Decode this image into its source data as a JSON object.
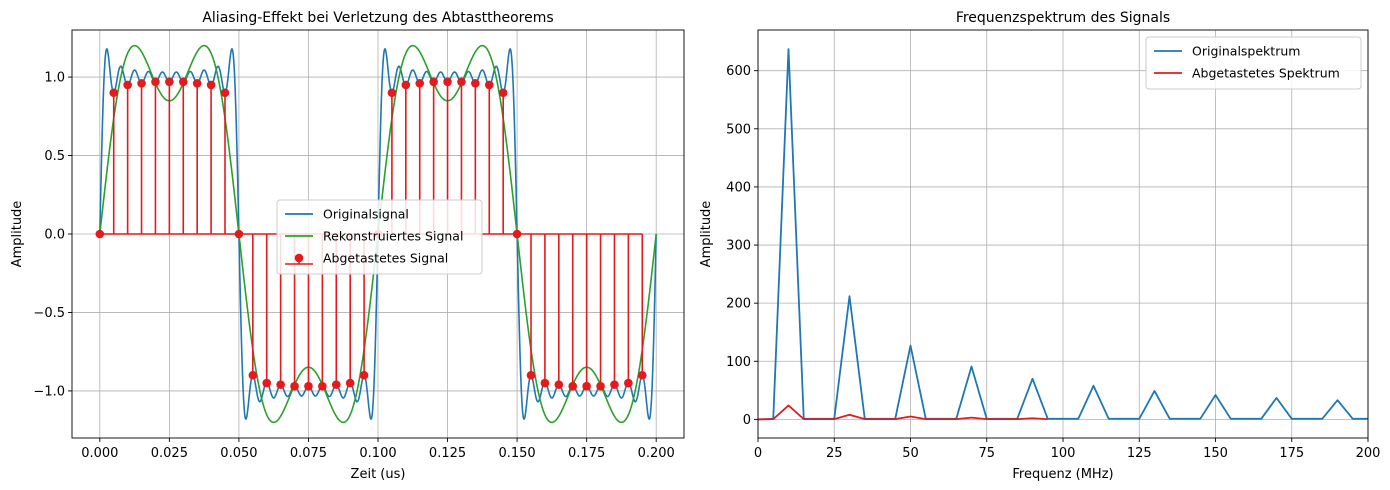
{
  "chart_data": [
    {
      "type": "line",
      "title": "Aliasing-Effekt bei Verletzung des Abtasttheorems",
      "xlabel": "Zeit (us)",
      "ylabel": "Amplitude",
      "xlim": [
        -0.01,
        0.21
      ],
      "ylim": [
        -1.3,
        1.3
      ],
      "xticks": [
        0.0,
        0.025,
        0.05,
        0.075,
        0.1,
        0.125,
        0.15,
        0.175,
        0.2
      ],
      "xtick_labels": [
        "0.000",
        "0.025",
        "0.050",
        "0.075",
        "0.100",
        "0.125",
        "0.150",
        "0.175",
        "0.200"
      ],
      "yticks": [
        -1.0,
        -0.5,
        0.0,
        0.5,
        1.0
      ],
      "ytick_labels": [
        "−1.0",
        "−0.5",
        "0.0",
        "0.5",
        "1.0"
      ],
      "grid": true,
      "legend_position": "center",
      "series": [
        {
          "name": "Originalsignal",
          "kind": "line",
          "color": "#1f77b4",
          "signal": {
            "fundamental_MHz": 10,
            "odd_harmonics_up_to": 19,
            "duration_us": 0.2
          }
        },
        {
          "name": "Rekonstruiertes Signal",
          "kind": "line",
          "color": "#2ca02c",
          "signal": {
            "fundamental_MHz": 10,
            "odd_harmonics_up_to": 3,
            "duration_us": 0.2
          }
        },
        {
          "name": "Abgetastetes Signal",
          "kind": "stem",
          "color": "#e41a1c",
          "x": [
            0.0,
            0.005,
            0.01,
            0.015,
            0.02,
            0.025,
            0.03,
            0.035,
            0.04,
            0.045,
            0.05,
            0.055,
            0.06,
            0.065,
            0.07,
            0.075,
            0.08,
            0.085,
            0.09,
            0.095,
            0.1,
            0.105,
            0.11,
            0.115,
            0.12,
            0.125,
            0.13,
            0.135,
            0.14,
            0.145,
            0.15,
            0.155,
            0.16,
            0.165,
            0.17,
            0.175,
            0.18,
            0.185,
            0.19,
            0.195
          ],
          "y": [
            0.0,
            0.9,
            0.95,
            0.96,
            0.97,
            0.97,
            0.97,
            0.96,
            0.95,
            0.9,
            0.0,
            -0.9,
            -0.95,
            -0.96,
            -0.97,
            -0.97,
            -0.97,
            -0.96,
            -0.95,
            -0.9,
            0.0,
            0.9,
            0.95,
            0.96,
            0.97,
            0.97,
            0.97,
            0.96,
            0.95,
            0.9,
            0.0,
            -0.9,
            -0.95,
            -0.96,
            -0.97,
            -0.97,
            -0.97,
            -0.96,
            -0.95,
            -0.9
          ]
        }
      ]
    },
    {
      "type": "line",
      "title": "Frequenzspektrum des Signals",
      "xlabel": "Frequenz (MHz)",
      "ylabel": "Amplitude",
      "xlim": [
        0,
        200
      ],
      "ylim": [
        -32,
        670
      ],
      "xticks": [
        0,
        25,
        50,
        75,
        100,
        125,
        150,
        175,
        200
      ],
      "yticks": [
        0,
        100,
        200,
        300,
        400,
        500,
        600
      ],
      "grid": true,
      "legend_position": "upper right",
      "series": [
        {
          "name": "Originalspektrum",
          "color": "#1f77b4",
          "x": [
            0,
            5,
            10,
            15,
            20,
            25,
            30,
            35,
            40,
            45,
            50,
            55,
            60,
            65,
            70,
            75,
            80,
            85,
            90,
            95,
            100,
            105,
            110,
            115,
            120,
            125,
            130,
            135,
            140,
            145,
            150,
            155,
            160,
            165,
            170,
            175,
            180,
            185,
            190,
            195,
            200
          ],
          "y": [
            0,
            1,
            637,
            1,
            1,
            1,
            212,
            1,
            1,
            1,
            127,
            1,
            1,
            1,
            91,
            1,
            1,
            1,
            70,
            1,
            1,
            1,
            58,
            1,
            1,
            1,
            49,
            1,
            1,
            1,
            42,
            1,
            1,
            1,
            37,
            1,
            1,
            1,
            33,
            1,
            1
          ]
        },
        {
          "name": "Abgetastetes Spektrum",
          "color": "#e41a1c",
          "x": [
            0,
            5,
            10,
            15,
            20,
            25,
            30,
            35,
            40,
            45,
            50,
            55,
            60,
            65,
            70,
            75,
            80,
            85,
            90,
            95
          ],
          "y": [
            0,
            0.5,
            24,
            0.5,
            0.5,
            0.5,
            8,
            0.5,
            0.5,
            0.5,
            5,
            0.5,
            0.5,
            0.5,
            3,
            0.5,
            0.5,
            0.5,
            2,
            0.5
          ]
        }
      ]
    }
  ]
}
